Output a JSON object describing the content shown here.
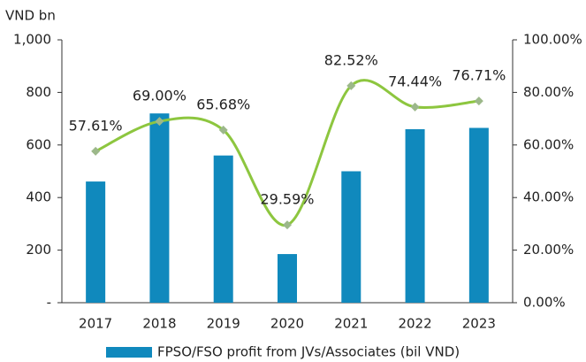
{
  "chart_data": {
    "type": "bar-line",
    "y_axis_label": "VND bn",
    "categories": [
      "2017",
      "2018",
      "2019",
      "2020",
      "2021",
      "2022",
      "2023"
    ],
    "series": [
      {
        "name": "FPSO/FSO profit from JVs/Associates (bil VND)",
        "type": "bar",
        "color": "#1089bd",
        "values": [
          461,
          720,
          560,
          185,
          500,
          660,
          665
        ]
      },
      {
        "type": "line",
        "axis": "y2",
        "color": "#8dc63f",
        "marker_color": "#9cb88a",
        "smooth": true,
        "values": [
          57.61,
          69.0,
          65.68,
          29.59,
          82.52,
          74.44,
          76.71
        ],
        "value_labels": [
          "57.61%",
          "69.00%",
          "65.68%",
          "29.59%",
          "82.52%",
          "74.44%",
          "76.71%"
        ]
      }
    ],
    "ylim": [
      0,
      1000
    ],
    "yticks": [
      {
        "value": 0,
        "label": "-"
      },
      200,
      400,
      600,
      800,
      {
        "value": 1000,
        "label": "1,000"
      }
    ],
    "y2lim": [
      0,
      100
    ],
    "y2ticks": [
      {
        "value": 0,
        "label": "0.00%"
      },
      {
        "value": 20,
        "label": "20.00%"
      },
      {
        "value": 40,
        "label": "40.00%"
      },
      {
        "value": 60,
        "label": "60.00%"
      },
      {
        "value": 80,
        "label": "80.00%"
      },
      {
        "value": 100,
        "label": "100.00%"
      }
    ],
    "grid": false,
    "legend": "bottom"
  }
}
